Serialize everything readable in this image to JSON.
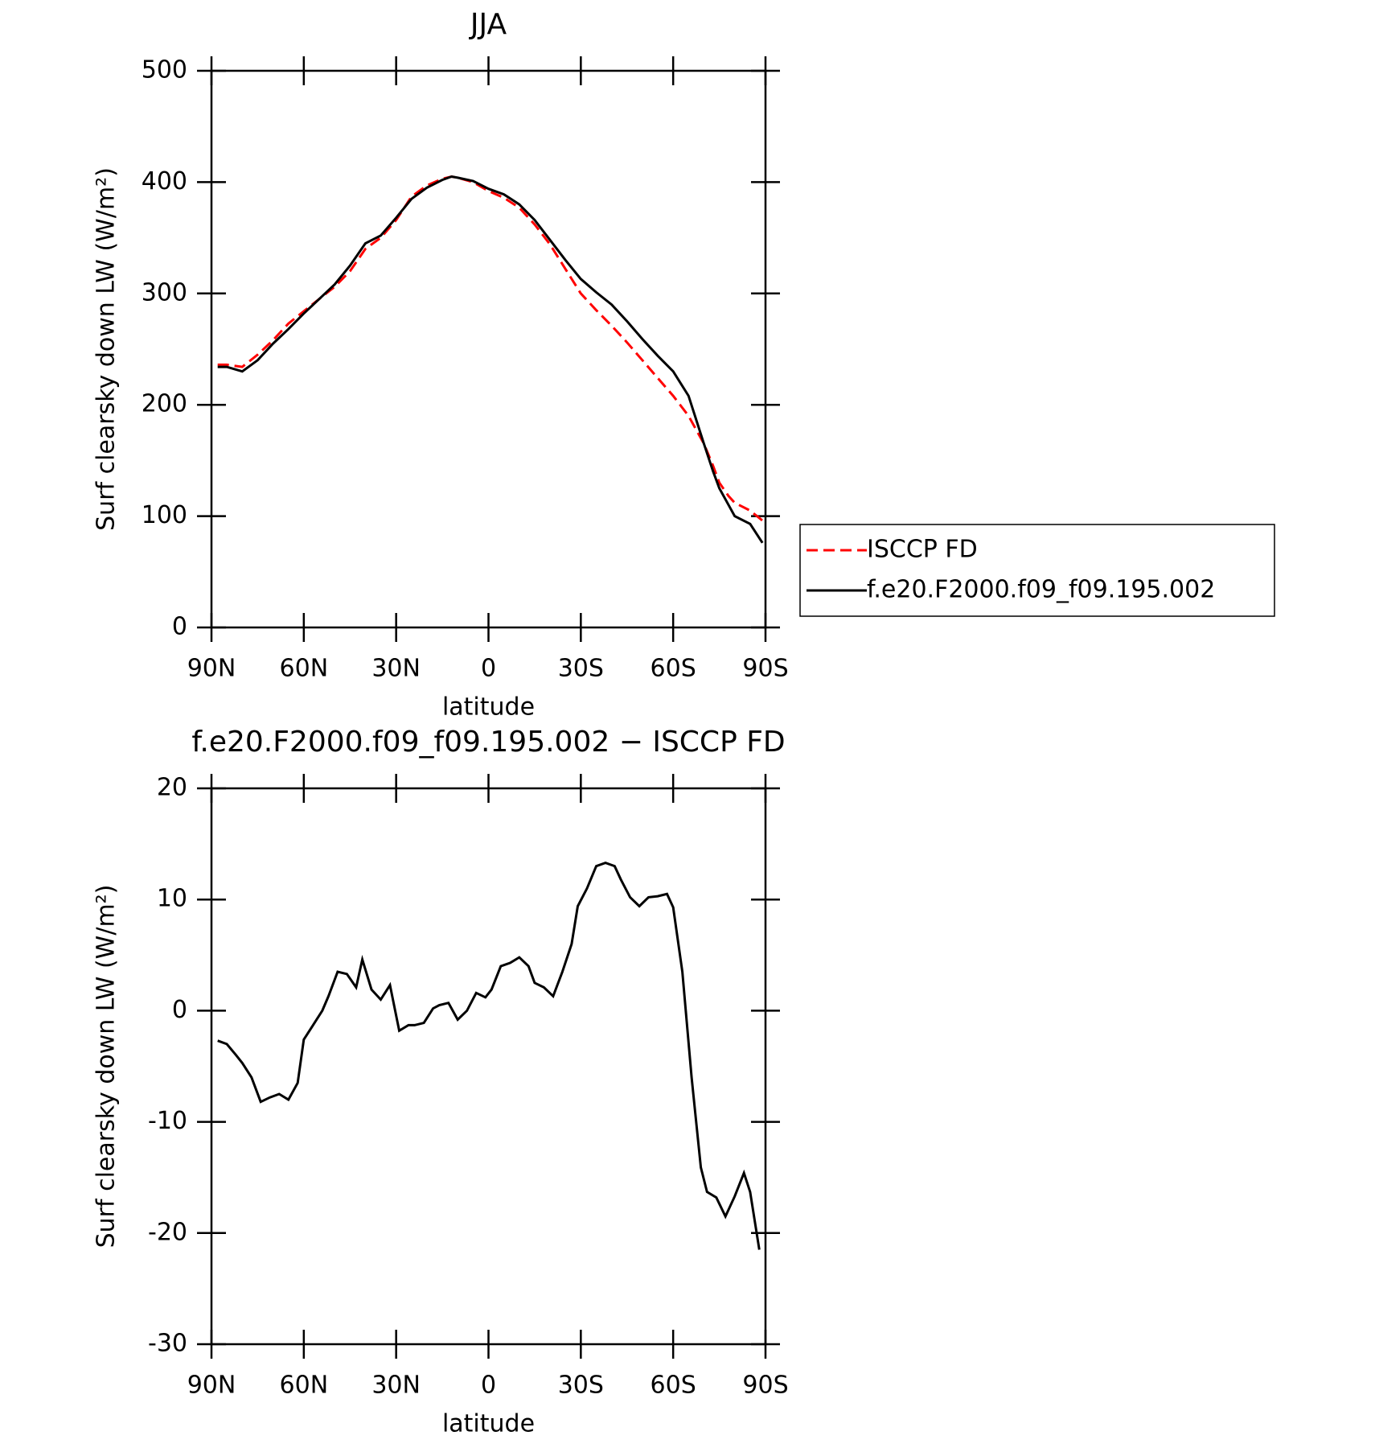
{
  "chart_data": [
    {
      "type": "line",
      "title": "JJA",
      "xlabel": "latitude",
      "ylabel": "Surf clearsky down LW (W/m²)",
      "x": [
        88,
        85,
        80,
        75,
        70,
        65,
        60,
        55,
        50,
        45,
        40,
        35,
        30,
        25,
        20,
        15,
        12,
        10,
        5,
        0,
        -5,
        -10,
        -15,
        -20,
        -25,
        -30,
        -35,
        -40,
        -45,
        -50,
        -55,
        -60,
        -65,
        -70,
        -73,
        -75,
        -78,
        -80,
        -85,
        -89
      ],
      "series": [
        {
          "name": "ISCCP FD",
          "color": "#ff0000",
          "line_style": "dashed",
          "values": [
            236,
            236,
            234,
            245,
            258,
            273,
            284,
            295,
            306,
            320,
            340,
            350,
            366,
            387,
            397,
            403,
            405,
            404,
            400,
            392,
            386,
            377,
            362,
            344,
            322,
            300,
            285,
            271,
            256,
            240,
            224,
            208,
            190,
            165,
            145,
            130,
            118,
            112,
            105,
            96
          ]
        },
        {
          "name": "f.e20.F2000.f09_f09.195.002",
          "color": "#000000",
          "line_style": "solid",
          "values": [
            234,
            234,
            230,
            240,
            255,
            268,
            282,
            295,
            308,
            325,
            345,
            352,
            368,
            385,
            395,
            402,
            405,
            404,
            401,
            394,
            389,
            380,
            366,
            348,
            330,
            313,
            301,
            290,
            275,
            259,
            244,
            230,
            208,
            165,
            140,
            125,
            110,
            100,
            93,
            76
          ]
        }
      ],
      "xlim": [
        90,
        -90
      ],
      "xticks": [
        {
          "value": 90,
          "label": "90N"
        },
        {
          "value": 60,
          "label": "60N"
        },
        {
          "value": 30,
          "label": "30N"
        },
        0,
        {
          "value": -30,
          "label": "30S"
        },
        {
          "value": -60,
          "label": "60S"
        },
        {
          "value": -90,
          "label": "90S"
        }
      ],
      "ylim": [
        0,
        500
      ],
      "yticks": [
        0,
        100,
        200,
        300,
        400,
        500
      ],
      "legend": "right"
    },
    {
      "type": "line",
      "title": "f.e20.F2000.f09_f09.195.002 − ISCCP FD",
      "xlabel": "latitude",
      "ylabel": "Surf clearsky down LW (W/m²)",
      "x": [
        88,
        85,
        82,
        80,
        77,
        74,
        71,
        68,
        65,
        62,
        60,
        57,
        54,
        52,
        49,
        46,
        43,
        41,
        38,
        35,
        32,
        29,
        26,
        24,
        21,
        18,
        16,
        13,
        10,
        7,
        4,
        1,
        -1,
        -4,
        -7,
        -10,
        -13,
        -15,
        -18,
        -21,
        -24,
        -27,
        -29,
        -32,
        -35,
        -38,
        -41,
        -43,
        -46,
        -49,
        -52,
        -55,
        -58,
        -60,
        -63,
        -66,
        -69,
        -71,
        -74,
        -77,
        -80,
        -83,
        -85,
        -88
      ],
      "series": [
        {
          "color": "#000000",
          "line_style": "solid",
          "values": [
            -2.7,
            -3,
            -4,
            -4.7,
            -6,
            -8.2,
            -7.8,
            -7.5,
            -8,
            -6.5,
            -2.6,
            -1.3,
            0,
            1.3,
            3.5,
            3.3,
            2.1,
            4.6,
            1.9,
            1,
            2.3,
            -1.8,
            -1.3,
            -1.3,
            -1.1,
            0.2,
            0.5,
            0.7,
            -0.8,
            0,
            1.6,
            1.2,
            1.9,
            4,
            4.3,
            4.8,
            4,
            2.5,
            2.1,
            1.3,
            3.5,
            6,
            9.4,
            11,
            13,
            13.3,
            13,
            11.8,
            10.2,
            9.4,
            10.2,
            10.3,
            10.5,
            9.3,
            3.5,
            -6,
            -14.1,
            -16.3,
            -16.8,
            -18.5,
            -16.7,
            -14.6,
            -16.3,
            -21.5
          ]
        }
      ],
      "xlim": [
        90,
        -90
      ],
      "xticks": [
        {
          "value": 90,
          "label": "90N"
        },
        {
          "value": 60,
          "label": "60N"
        },
        {
          "value": 30,
          "label": "30N"
        },
        0,
        {
          "value": -30,
          "label": "30S"
        },
        {
          "value": -60,
          "label": "60S"
        },
        {
          "value": -90,
          "label": "90S"
        }
      ],
      "ylim": [
        -30,
        20
      ],
      "yticks": [
        -30,
        -20,
        -10,
        0,
        10,
        20
      ]
    }
  ]
}
